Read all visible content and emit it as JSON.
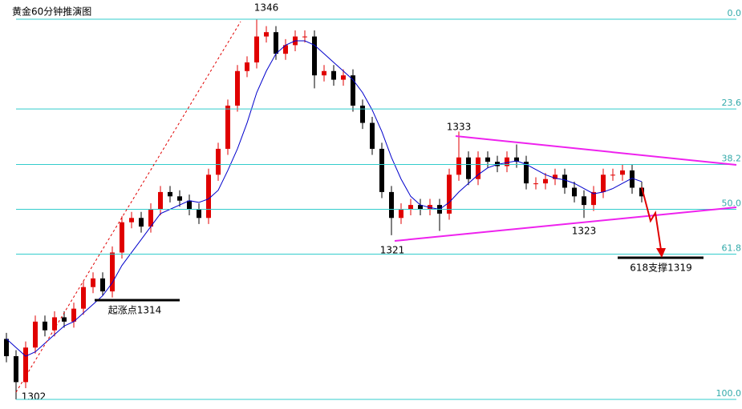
{
  "chart_data": {
    "type": "candlestick",
    "title": "黄金60分钟推演图",
    "open": [
      1309,
      1307,
      1304,
      1308,
      1311,
      1310,
      1311.5,
      1311,
      1312.5,
      1315,
      1316,
      1314.5,
      1319,
      1322.5,
      1323,
      1322,
      1324,
      1326,
      1325.5,
      1325,
      1324,
      1323,
      1328,
      1331,
      1336,
      1340,
      1341,
      1344,
      1344.5,
      1342,
      1343,
      1344,
      1344,
      1339.5,
      1340,
      1339,
      1339.5,
      1336,
      1334,
      1331,
      1326,
      1323,
      1324,
      1324.5,
      1324,
      1324.5,
      1323.5,
      1328,
      1330,
      1327.5,
      1330,
      1329.5,
      1329,
      1330,
      1329.5,
      1327,
      1327,
      1327.5,
      1328,
      1326.5,
      1325.5,
      1324.5,
      1326,
      1328,
      1328,
      1328.5,
      1326.5
    ],
    "high": [
      1309.7,
      1307.7,
      1308.7,
      1311.7,
      1311.7,
      1312.2,
      1312.2,
      1313.2,
      1315.7,
      1316.7,
      1316.7,
      1319.7,
      1323.2,
      1323.7,
      1323.7,
      1324.7,
      1326.7,
      1326.7,
      1326.2,
      1325.7,
      1324.7,
      1328.7,
      1331.7,
      1336.7,
      1340.7,
      1341.7,
      1346,
      1345.2,
      1345.2,
      1343.7,
      1344.7,
      1344.7,
      1344.7,
      1340.7,
      1340.7,
      1340.2,
      1340.2,
      1336.7,
      1334.7,
      1331.7,
      1326.7,
      1324.7,
      1325.2,
      1325.2,
      1325.2,
      1325.2,
      1328.7,
      1333,
      1330.7,
      1330.7,
      1330.7,
      1330.2,
      1330.7,
      1331.5,
      1330.2,
      1327.7,
      1328.2,
      1328.7,
      1328.7,
      1327.2,
      1326.2,
      1326.7,
      1328.7,
      1328.7,
      1329.2,
      1329.2,
      1327.2
    ],
    "low": [
      1306.3,
      1302,
      1303.3,
      1307.3,
      1309.3,
      1309.3,
      1310.3,
      1310.3,
      1311.8,
      1314.3,
      1314,
      1313.8,
      1318.3,
      1321.8,
      1321.3,
      1321.3,
      1323.3,
      1324.8,
      1324.3,
      1323.3,
      1322.3,
      1322.3,
      1327.3,
      1330.3,
      1335.3,
      1339.3,
      1340.3,
      1343.3,
      1341.3,
      1341.3,
      1342.3,
      1343.3,
      1338,
      1338.8,
      1338.3,
      1338.3,
      1335.3,
      1333.3,
      1330.3,
      1325.3,
      1321,
      1322.3,
      1323.3,
      1323.3,
      1323.3,
      1321.5,
      1322.8,
      1327.3,
      1326.8,
      1326.8,
      1328.8,
      1328.3,
      1328.3,
      1328.8,
      1326.3,
      1326.3,
      1326.3,
      1326.8,
      1325.8,
      1324.8,
      1323,
      1323.8,
      1325.3,
      1327.3,
      1327.3,
      1325.8,
      1324.8
    ],
    "close": [
      1307,
      1304,
      1308,
      1311,
      1310,
      1311.5,
      1311,
      1312.5,
      1315,
      1316,
      1314.5,
      1319,
      1322.5,
      1323,
      1322,
      1324,
      1326,
      1325.5,
      1325,
      1324,
      1323,
      1328,
      1331,
      1336,
      1340,
      1341,
      1344,
      1344.5,
      1342,
      1343,
      1344,
      1344,
      1339.5,
      1340,
      1339,
      1339.5,
      1336,
      1334,
      1331,
      1326,
      1323,
      1324,
      1324.5,
      1324,
      1324.5,
      1323.5,
      1328,
      1330,
      1327.5,
      1330,
      1329.5,
      1329,
      1330,
      1329.5,
      1327,
      1327,
      1327.5,
      1328,
      1326.5,
      1325.5,
      1324.5,
      1326,
      1328,
      1328,
      1328.5,
      1326.5,
      1325.5
    ],
    "ma": [
      1309,
      1308,
      1307,
      1307.5,
      1308.5,
      1309.5,
      1310.5,
      1311,
      1312,
      1313,
      1314,
      1315.5,
      1317.5,
      1319,
      1320.5,
      1322,
      1323.5,
      1324,
      1324.5,
      1325,
      1324.8,
      1325.2,
      1326.2,
      1328.5,
      1331,
      1334,
      1337.5,
      1340,
      1342,
      1343,
      1343.5,
      1343.5,
      1343,
      1342,
      1341,
      1340,
      1339,
      1337.5,
      1335.5,
      1333,
      1330,
      1327.5,
      1325.5,
      1324.5,
      1324.2,
      1324,
      1324.8,
      1326,
      1327,
      1328,
      1328.8,
      1329.2,
      1329.4,
      1329.6,
      1329.2,
      1328.6,
      1328,
      1327.6,
      1327.4,
      1327,
      1326.4,
      1325.8,
      1326,
      1326.4,
      1327,
      1327.6,
      1327.2
    ],
    "up_color": "#e00000",
    "down_color": "#000000",
    "ma_color": "#0000cc",
    "ylim": [
      1302,
      1346
    ],
    "y2lim": [
      100,
      0
    ],
    "y2ticks": [
      {
        "value": 0,
        "label": "0.0"
      },
      23.6,
      38.2,
      {
        "value": 50,
        "label": "50.0"
      },
      61.8,
      {
        "value": 100,
        "label": "100.0"
      }
    ],
    "grid_color": "#33cccc",
    "annotations": [
      "1346",
      "1333",
      "1321",
      "1323",
      "1302",
      "起涨点1314",
      "618支撑1319"
    ]
  }
}
